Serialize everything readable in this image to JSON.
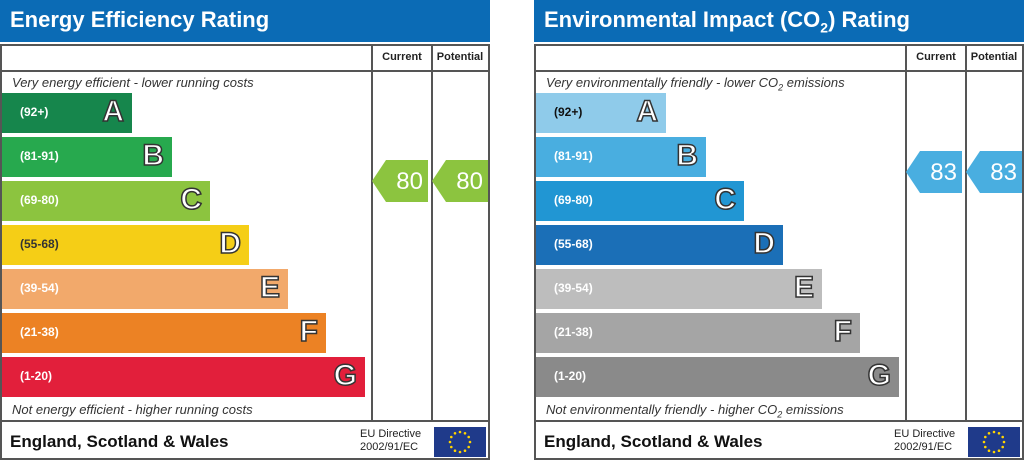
{
  "panels": [
    {
      "title": "Energy Efficiency Rating",
      "title_sub": "",
      "title_after": "",
      "col_current": "Current",
      "col_potential": "Potential",
      "top_note": "Very energy efficient - lower running costs",
      "top_note_sub": "",
      "top_note_after": "",
      "bottom_note": "Not energy efficient - higher running costs",
      "bottom_note_sub": "",
      "bottom_note_after": "",
      "footer": "England, Scotland & Wales",
      "eu_line1": "EU Directive",
      "eu_line2": "2002/91/EC",
      "current": 80,
      "potential": 80,
      "current_color": "#8cc43f",
      "potential_color": "#8cc43f",
      "bands": [
        {
          "range": "(92+)",
          "letter": "A",
          "color": "#16864c",
          "text": "#fff"
        },
        {
          "range": "(81-91)",
          "letter": "B",
          "color": "#27a94e",
          "text": "#fff"
        },
        {
          "range": "(69-80)",
          "letter": "C",
          "color": "#8cc43f",
          "text": "#fff"
        },
        {
          "range": "(55-68)",
          "letter": "D",
          "color": "#f5ce16",
          "text": "#333"
        },
        {
          "range": "(39-54)",
          "letter": "E",
          "color": "#f2a96b",
          "text": "#fff"
        },
        {
          "range": "(21-38)",
          "letter": "F",
          "color": "#ec8224",
          "text": "#fff"
        },
        {
          "range": "(1-20)",
          "letter": "G",
          "color": "#e21f3b",
          "text": "#fff"
        }
      ]
    },
    {
      "title": "Environmental Impact (CO",
      "title_sub": "2",
      "title_after": ") Rating",
      "col_current": "Current",
      "col_potential": "Potential",
      "top_note": "Very environmentally friendly - lower CO",
      "top_note_sub": "2",
      "top_note_after": " emissions",
      "bottom_note": "Not environmentally friendly - higher CO",
      "bottom_note_sub": "2",
      "bottom_note_after": " emissions",
      "footer": "England, Scotland & Wales",
      "eu_line1": "EU Directive",
      "eu_line2": "2002/91/EC",
      "current": 83,
      "potential": 83,
      "current_color": "#49aee0",
      "potential_color": "#49aee0",
      "bands": [
        {
          "range": "(92+)",
          "letter": "A",
          "color": "#8fcbea",
          "text": "#111"
        },
        {
          "range": "(81-91)",
          "letter": "B",
          "color": "#49aee0",
          "text": "#fff"
        },
        {
          "range": "(69-80)",
          "letter": "C",
          "color": "#2196d3",
          "text": "#fff"
        },
        {
          "range": "(55-68)",
          "letter": "D",
          "color": "#1b6fb7",
          "text": "#fff"
        },
        {
          "range": "(39-54)",
          "letter": "E",
          "color": "#bdbdbd",
          "text": "#fff"
        },
        {
          "range": "(21-38)",
          "letter": "F",
          "color": "#a5a5a5",
          "text": "#fff"
        },
        {
          "range": "(1-20)",
          "letter": "G",
          "color": "#8a8a8a",
          "text": "#fff"
        }
      ]
    }
  ]
}
